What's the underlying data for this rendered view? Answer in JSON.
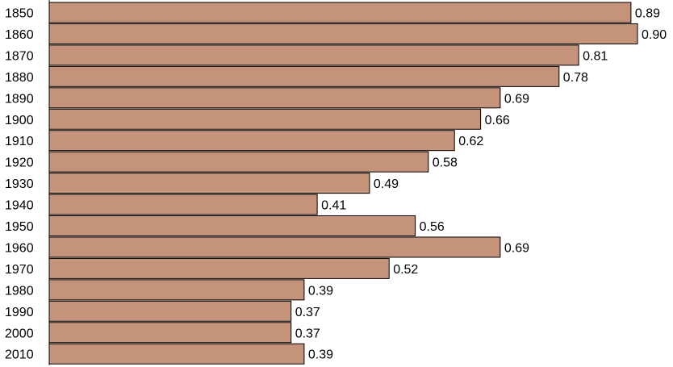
{
  "chart_data": {
    "type": "bar",
    "orientation": "horizontal",
    "categories": [
      "1850",
      "1860",
      "1870",
      "1880",
      "1890",
      "1900",
      "1910",
      "1920",
      "1930",
      "1940",
      "1950",
      "1960",
      "1970",
      "1980",
      "1990",
      "2000",
      "2010"
    ],
    "values": [
      0.89,
      0.9,
      0.81,
      0.78,
      0.69,
      0.66,
      0.62,
      0.58,
      0.49,
      0.41,
      0.56,
      0.69,
      0.52,
      0.39,
      0.37,
      0.37,
      0.39
    ],
    "value_labels": [
      "0.89",
      "0.90",
      "0.81",
      "0.78",
      "0.69",
      "0.66",
      "0.62",
      "0.58",
      "0.49",
      "0.41",
      "0.56",
      "0.69",
      "0.52",
      "0.39",
      "0.37",
      "0.37",
      "0.39"
    ],
    "xlim": [
      0,
      0.9
    ],
    "title": "",
    "xlabel": "",
    "ylabel": "",
    "grid": false,
    "legend": false,
    "colors": {
      "bar_fill": "#C4937A",
      "bar_stroke": "#000000",
      "axis": "#000000",
      "text": "#000000"
    }
  }
}
